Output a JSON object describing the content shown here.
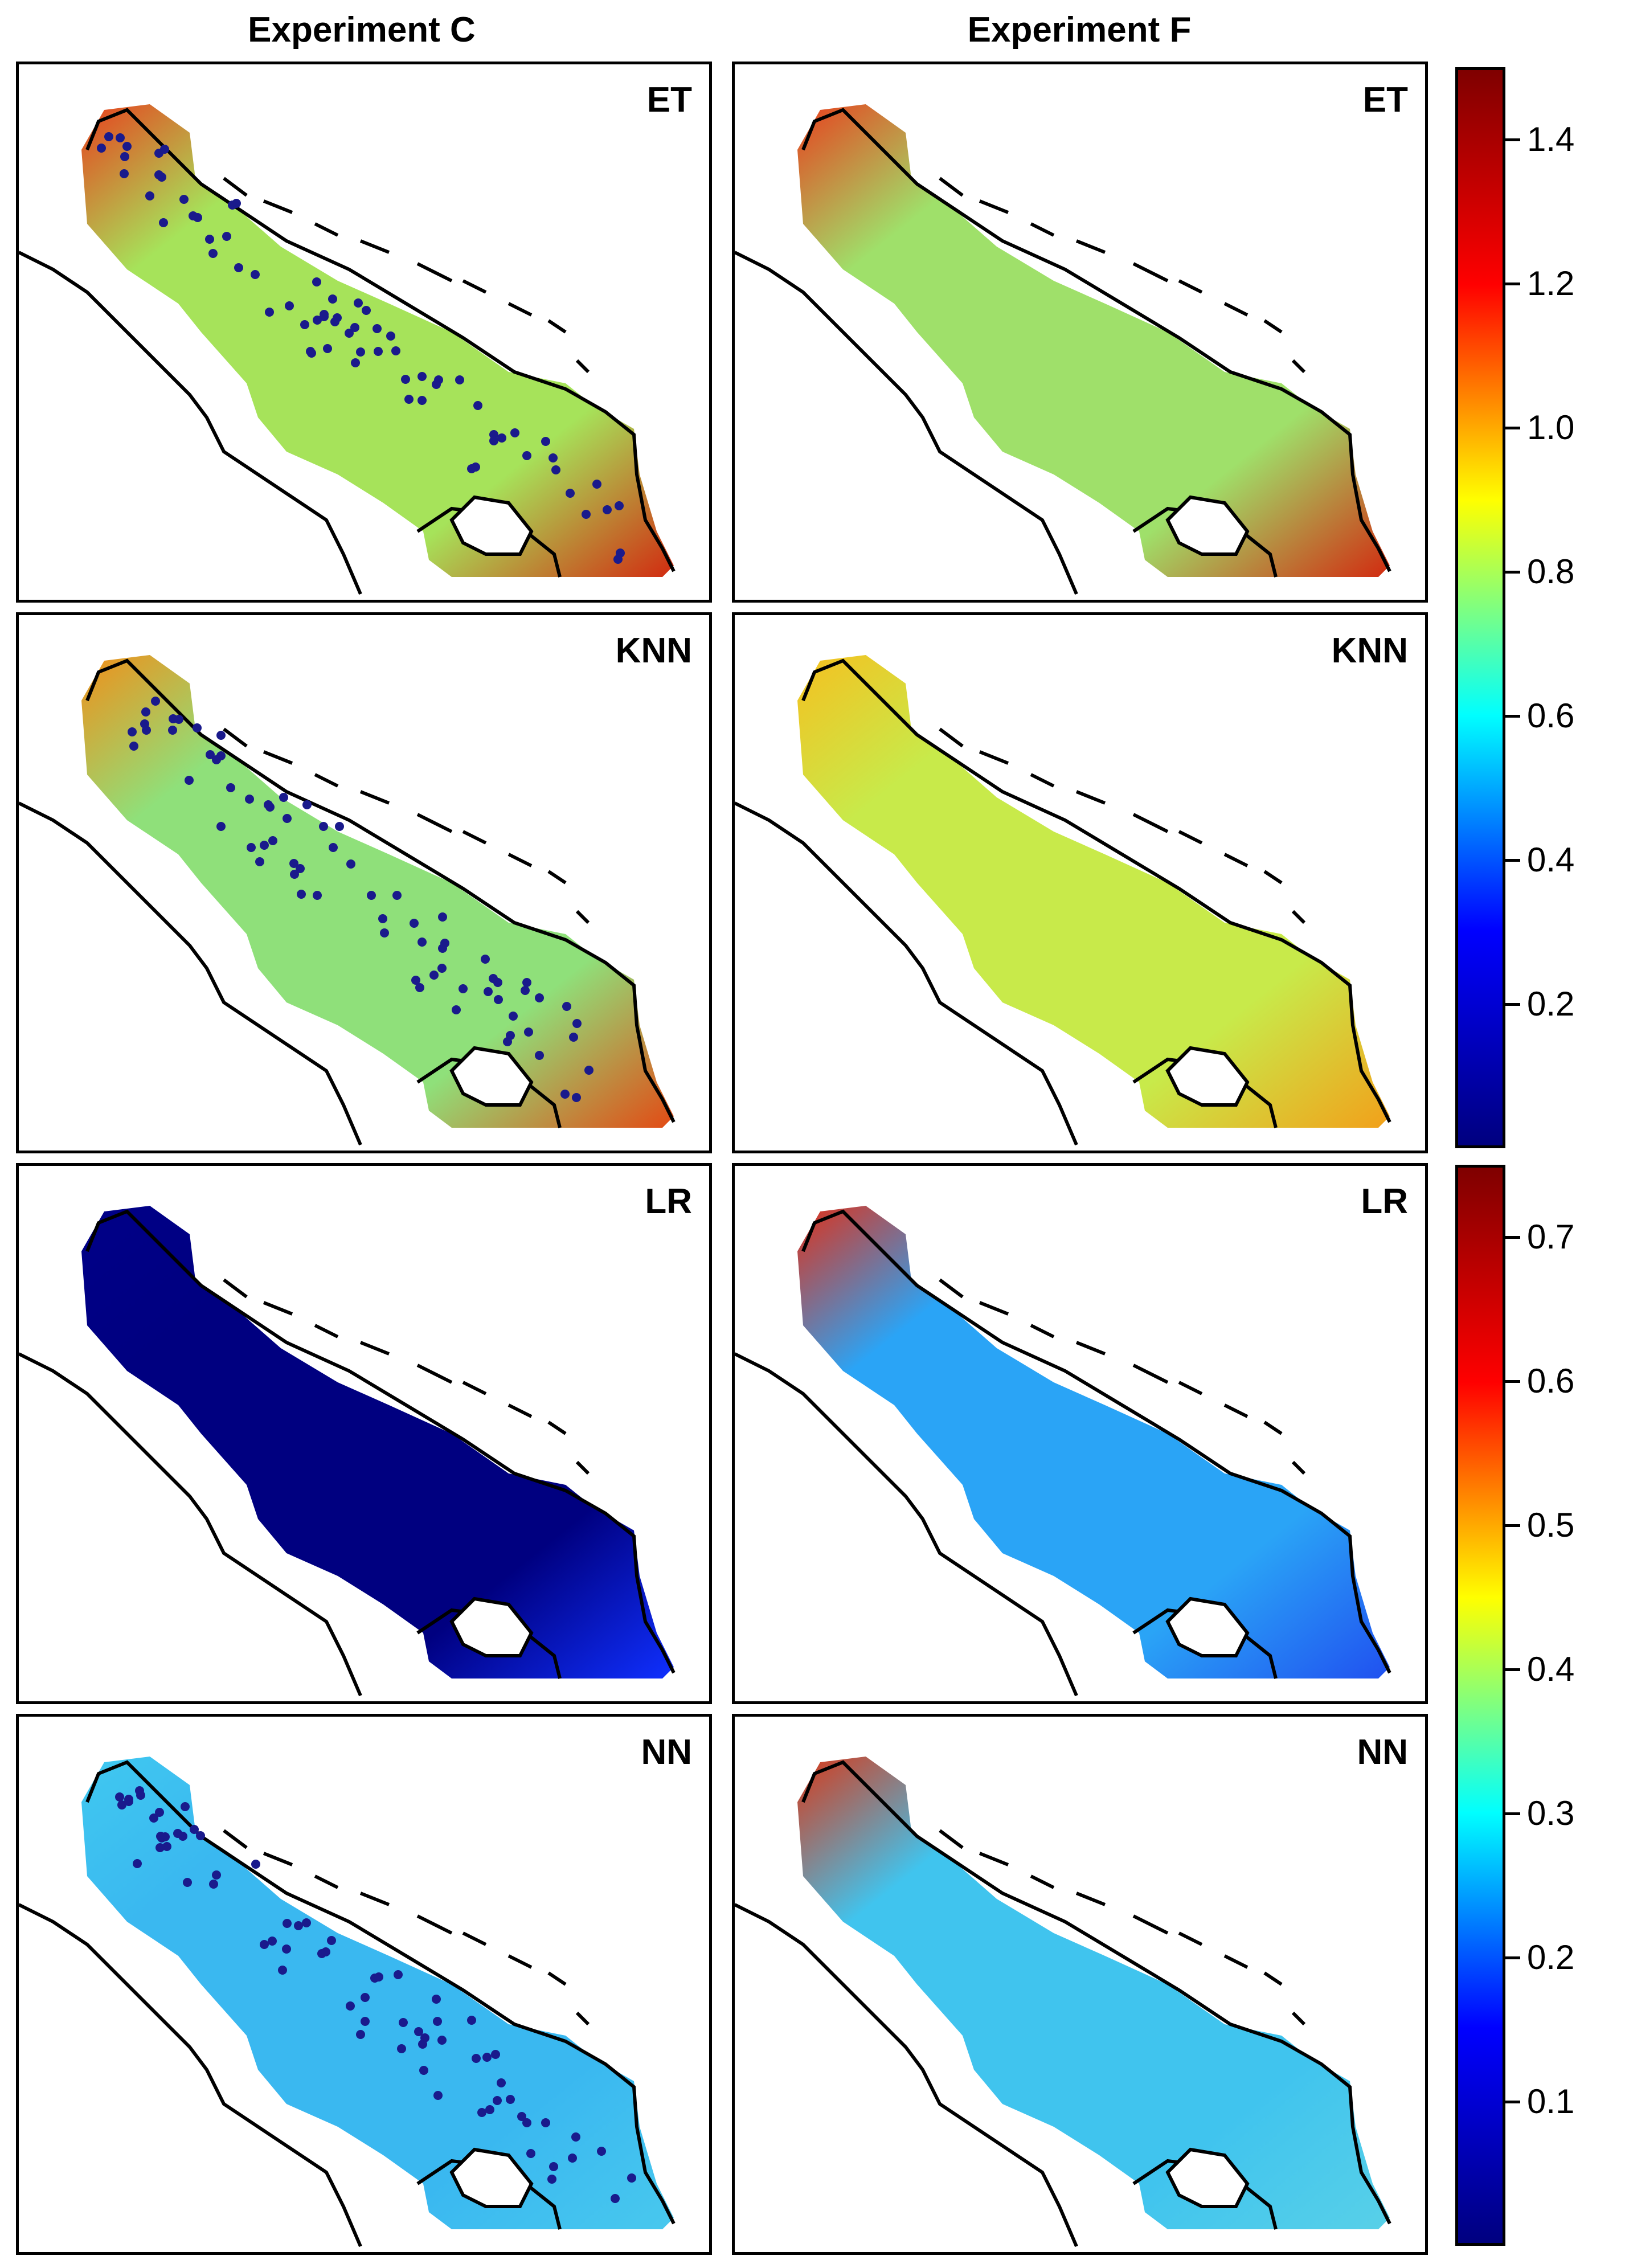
{
  "figure": {
    "columns": [
      "Experiment C",
      "Experiment F"
    ],
    "rows": [
      "ET",
      "KNN",
      "LR",
      "NN"
    ]
  },
  "colorbar_top": {
    "ticks": [
      "0.2",
      "0.4",
      "0.6",
      "0.8",
      "1.0",
      "1.2",
      "1.4"
    ],
    "tick_values": [
      0.2,
      0.4,
      0.6,
      0.8,
      1.0,
      1.2,
      1.4
    ],
    "range": [
      0.0,
      1.5
    ],
    "rows": [
      "ET",
      "KNN"
    ]
  },
  "colorbar_bottom": {
    "ticks": [
      "0.1",
      "0.2",
      "0.3",
      "0.4",
      "0.5",
      "0.6",
      "0.7"
    ],
    "tick_values": [
      0.1,
      0.2,
      0.3,
      0.4,
      0.5,
      0.6,
      0.7
    ],
    "range": [
      0.0,
      0.75
    ],
    "rows": [
      "LR",
      "NN"
    ]
  },
  "colors": {
    "colormap": "jet",
    "jet_stops": [
      "#00007f",
      "#0000ff",
      "#00ffff",
      "#ffff00",
      "#ff0000",
      "#7f0000"
    ],
    "coastline": "#000000",
    "station_dots": "#1a1a8c"
  },
  "panels": {
    "C_ET": {
      "label": "ET",
      "fill": "#a6e35a",
      "north": "#e8401e",
      "south": "#d22a10",
      "dots": true
    },
    "F_ET": {
      "label": "ET",
      "fill": "#9fe06a",
      "north": "#e8401e",
      "south": "#d22a10",
      "dots": false
    },
    "C_KNN": {
      "label": "KNN",
      "fill": "#8fe07a",
      "north": "#f08f1a",
      "south": "#e34a14",
      "dots": true
    },
    "F_KNN": {
      "label": "KNN",
      "fill": "#c8ea4a",
      "north": "#f5c020",
      "south": "#f2a01a",
      "dots": false
    },
    "C_LR": {
      "label": "LR",
      "fill": "#000080",
      "north": "#000088",
      "south": "#1030ff",
      "dots": false
    },
    "F_LR": {
      "label": "LR",
      "fill": "#2aa4f6",
      "north": "#e03018",
      "south": "#2050f0",
      "dots": false
    },
    "C_NN": {
      "label": "NN",
      "fill": "#3ab8f0",
      "north": "#40c8f0",
      "south": "#48c8ee",
      "dots": true
    },
    "F_NN": {
      "label": "NN",
      "fill": "#40c4ee",
      "north": "#d83818",
      "south": "#58d0e8",
      "dots": false
    }
  }
}
